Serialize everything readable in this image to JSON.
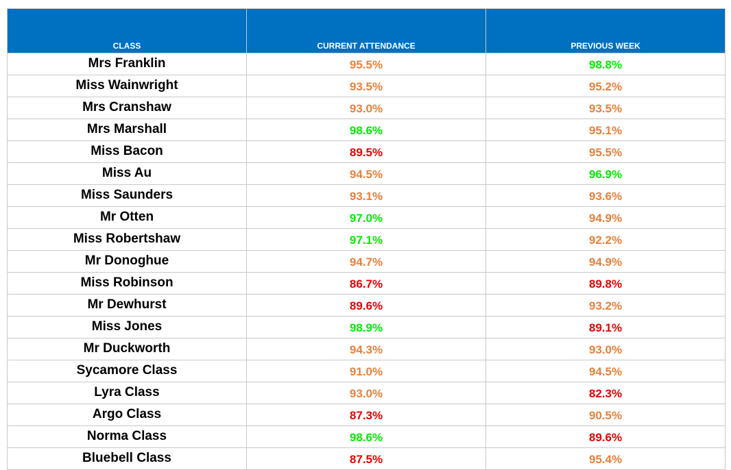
{
  "table": {
    "headers": [
      "CLASS",
      "CURRENT ATTENDANCE",
      "PREVIOUS WEEK"
    ],
    "colors": {
      "header_bg": "#0070c0",
      "good": "#00ee00",
      "medium": "#e8803c",
      "poor": "#e60000"
    },
    "rows": [
      {
        "name": "Mrs Franklin",
        "current": "95.5%",
        "current_status": "medium",
        "previous": "98.8%",
        "previous_status": "good"
      },
      {
        "name": "Miss Wainwright",
        "current": "93.5%",
        "current_status": "medium",
        "previous": "95.2%",
        "previous_status": "medium"
      },
      {
        "name": "Mrs Cranshaw",
        "current": "93.0%",
        "current_status": "medium",
        "previous": "93.5%",
        "previous_status": "medium"
      },
      {
        "name": "Mrs Marshall",
        "current": "98.6%",
        "current_status": "good",
        "previous": "95.1%",
        "previous_status": "medium"
      },
      {
        "name": "Miss Bacon",
        "current": "89.5%",
        "current_status": "poor",
        "previous": "95.5%",
        "previous_status": "medium"
      },
      {
        "name": "Miss Au",
        "current": "94.5%",
        "current_status": "medium",
        "previous": "96.9%",
        "previous_status": "good"
      },
      {
        "name": "Miss Saunders",
        "current": "93.1%",
        "current_status": "medium",
        "previous": "93.6%",
        "previous_status": "medium"
      },
      {
        "name": "Mr Otten",
        "current": "97.0%",
        "current_status": "good",
        "previous": "94.9%",
        "previous_status": "medium"
      },
      {
        "name": "Miss Robertshaw",
        "current": "97.1%",
        "current_status": "good",
        "previous": "92.2%",
        "previous_status": "medium"
      },
      {
        "name": "Mr Donoghue",
        "current": "94.7%",
        "current_status": "medium",
        "previous": "94.9%",
        "previous_status": "medium"
      },
      {
        "name": "Miss Robinson",
        "current": "86.7%",
        "current_status": "poor",
        "previous": "89.8%",
        "previous_status": "poor"
      },
      {
        "name": "Mr Dewhurst",
        "current": "89.6%",
        "current_status": "poor",
        "previous": "93.2%",
        "previous_status": "medium"
      },
      {
        "name": "Miss Jones",
        "current": "98.9%",
        "current_status": "good",
        "previous": "89.1%",
        "previous_status": "poor"
      },
      {
        "name": "Mr Duckworth",
        "current": "94.3%",
        "current_status": "medium",
        "previous": "93.0%",
        "previous_status": "medium"
      },
      {
        "name": "Sycamore Class",
        "current": "91.0%",
        "current_status": "medium",
        "previous": "94.5%",
        "previous_status": "medium"
      },
      {
        "name": "Lyra Class",
        "current": "93.0%",
        "current_status": "medium",
        "previous": "82.3%",
        "previous_status": "poor"
      },
      {
        "name": "Argo Class",
        "current": "87.3%",
        "current_status": "poor",
        "previous": "90.5%",
        "previous_status": "medium"
      },
      {
        "name": "Norma Class",
        "current": "98.6%",
        "current_status": "good",
        "previous": "89.6%",
        "previous_status": "poor"
      },
      {
        "name": "Bluebell Class",
        "current": "87.5%",
        "current_status": "poor",
        "previous": "95.4%",
        "previous_status": "medium"
      }
    ]
  }
}
